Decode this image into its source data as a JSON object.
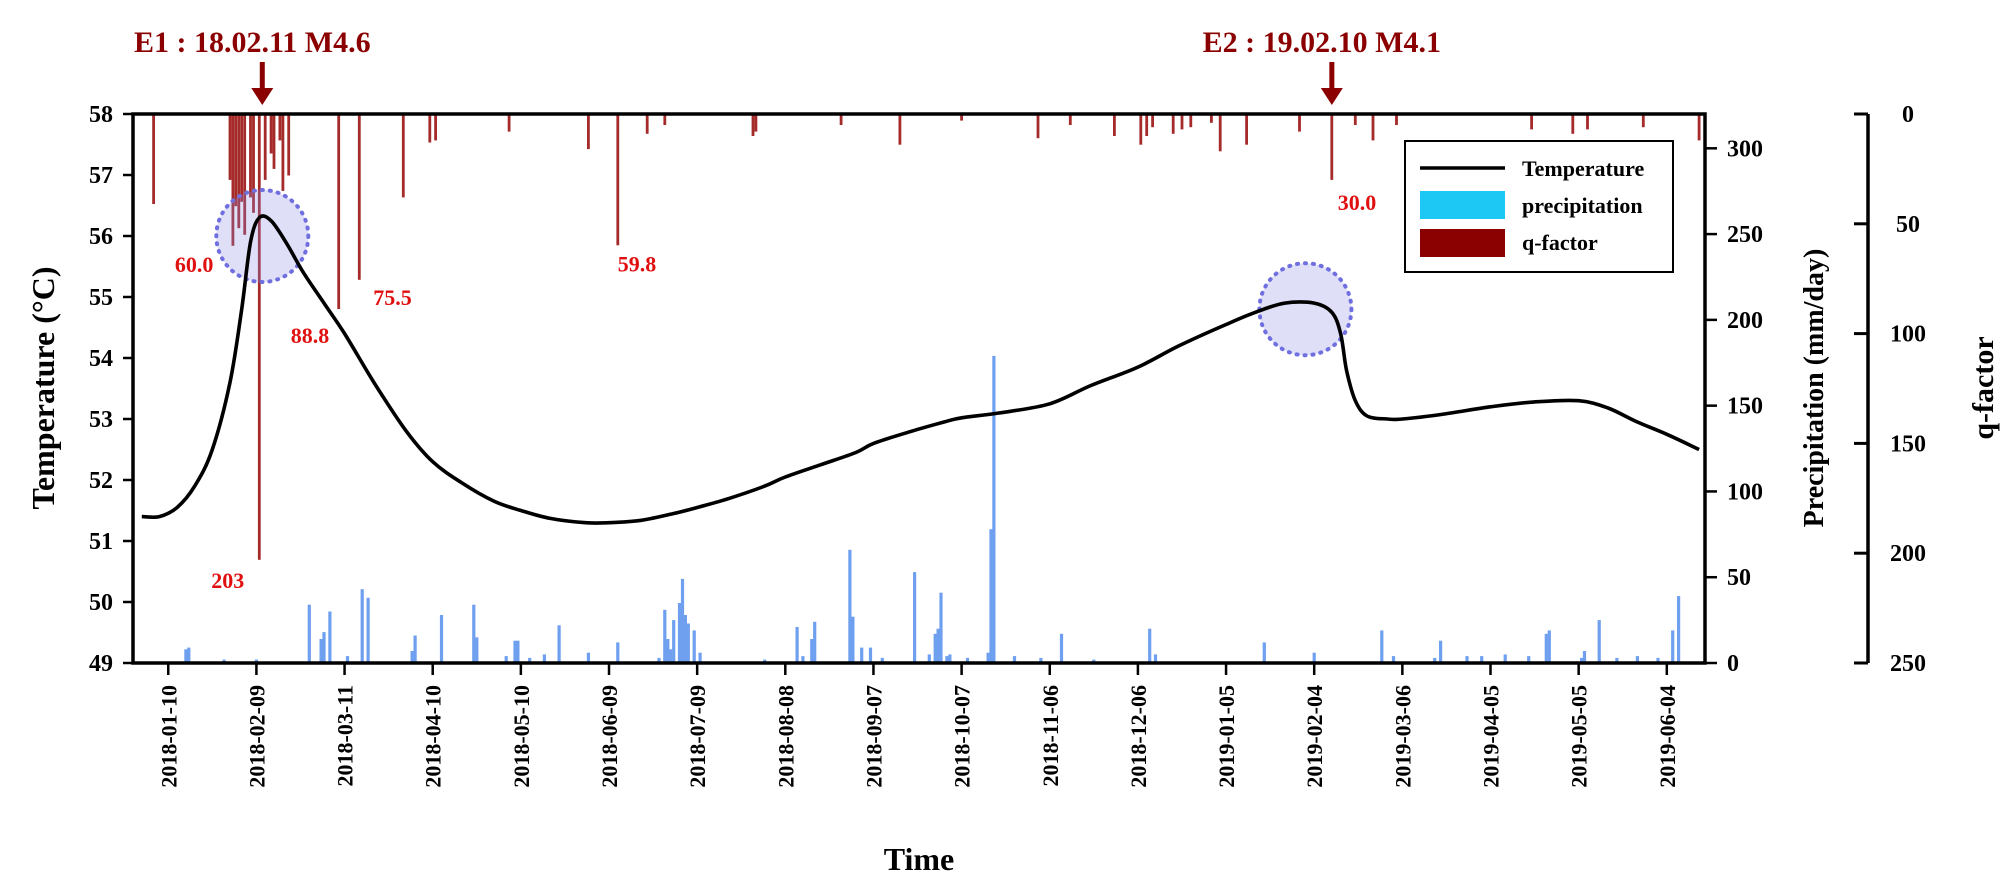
{
  "chart_data": {
    "type": "line",
    "xlabel": "Time",
    "ylabel_left": "Temperature (°C)",
    "ylabel_right_1": "Precipitation (mm/day)",
    "ylabel_right_2": "q-factor",
    "x_range": [
      "2017-12-29",
      "2019-06-17"
    ],
    "x_ticks": [
      "2018-01-10",
      "2018-02-09",
      "2018-03-11",
      "2018-04-10",
      "2018-05-10",
      "2018-06-09",
      "2018-07-09",
      "2018-08-08",
      "2018-09-07",
      "2018-10-07",
      "2018-11-06",
      "2018-12-06",
      "2019-01-05",
      "2019-02-04",
      "2019-03-06",
      "2019-04-05",
      "2019-05-05",
      "2019-06-04"
    ],
    "y_left": {
      "min": 49,
      "max": 58,
      "ticks": [
        49,
        50,
        51,
        52,
        53,
        54,
        55,
        56,
        57,
        58
      ]
    },
    "y_precip": {
      "min": 0,
      "max": 320,
      "ticks": [
        0,
        50,
        100,
        150,
        200,
        250,
        300
      ]
    },
    "y_qfactor": {
      "min": 0,
      "max": 250,
      "inverted": true,
      "ticks": [
        0,
        50,
        100,
        150,
        200,
        250
      ]
    },
    "legend": {
      "placement": "top-right",
      "items": [
        {
          "label": "Temperature",
          "color": "#000000",
          "kind": "line"
        },
        {
          "label": "precipitation",
          "color": "#1ec8f5",
          "kind": "box"
        },
        {
          "label": "q-factor",
          "color": "#8b0000",
          "kind": "box"
        }
      ]
    },
    "series": [
      {
        "name": "Temperature",
        "color": "#000000",
        "points": [
          [
            "2018-01-01",
            51.4
          ],
          [
            "2018-01-07",
            51.4
          ],
          [
            "2018-01-13",
            51.55
          ],
          [
            "2018-01-19",
            51.9
          ],
          [
            "2018-01-25",
            52.5
          ],
          [
            "2018-01-31",
            53.6
          ],
          [
            "2018-02-04",
            54.8
          ],
          [
            "2018-02-07",
            55.9
          ],
          [
            "2018-02-10",
            56.3
          ],
          [
            "2018-02-14",
            56.25
          ],
          [
            "2018-02-19",
            55.9
          ],
          [
            "2018-02-25",
            55.4
          ],
          [
            "2018-03-04",
            54.9
          ],
          [
            "2018-03-11",
            54.4
          ],
          [
            "2018-03-21",
            53.6
          ],
          [
            "2018-04-01",
            52.8
          ],
          [
            "2018-04-10",
            52.3
          ],
          [
            "2018-04-20",
            51.95
          ],
          [
            "2018-05-01",
            51.65
          ],
          [
            "2018-05-10",
            51.5
          ],
          [
            "2018-05-20",
            51.37
          ],
          [
            "2018-06-01",
            51.3
          ],
          [
            "2018-06-09",
            51.3
          ],
          [
            "2018-06-20",
            51.34
          ],
          [
            "2018-07-01",
            51.45
          ],
          [
            "2018-07-09",
            51.55
          ],
          [
            "2018-07-20",
            51.7
          ],
          [
            "2018-08-01",
            51.9
          ],
          [
            "2018-08-08",
            52.05
          ],
          [
            "2018-08-20",
            52.25
          ],
          [
            "2018-09-01",
            52.45
          ],
          [
            "2018-09-07",
            52.6
          ],
          [
            "2018-09-20",
            52.8
          ],
          [
            "2018-10-01",
            52.95
          ],
          [
            "2018-10-07",
            53.02
          ],
          [
            "2018-10-20",
            53.1
          ],
          [
            "2018-11-06",
            53.25
          ],
          [
            "2018-11-20",
            53.55
          ],
          [
            "2018-12-06",
            53.85
          ],
          [
            "2018-12-20",
            54.2
          ],
          [
            "2019-01-05",
            54.55
          ],
          [
            "2019-01-15",
            54.75
          ],
          [
            "2019-01-25",
            54.9
          ],
          [
            "2019-02-04",
            54.9
          ],
          [
            "2019-02-10",
            54.75
          ],
          [
            "2019-02-13",
            54.4
          ],
          [
            "2019-02-15",
            53.8
          ],
          [
            "2019-02-18",
            53.3
          ],
          [
            "2019-02-22",
            53.05
          ],
          [
            "2019-03-01",
            53.0
          ],
          [
            "2019-03-06",
            53.0
          ],
          [
            "2019-03-20",
            53.08
          ],
          [
            "2019-04-05",
            53.2
          ],
          [
            "2019-04-20",
            53.28
          ],
          [
            "2019-05-05",
            53.3
          ],
          [
            "2019-05-15",
            53.18
          ],
          [
            "2019-05-25",
            52.95
          ],
          [
            "2019-06-04",
            52.75
          ],
          [
            "2019-06-15",
            52.5
          ]
        ]
      },
      {
        "name": "precipitation",
        "color": "#6ea0ef",
        "points": [
          [
            "2018-01-16",
            8
          ],
          [
            "2018-01-17",
            9
          ],
          [
            "2018-01-29",
            2
          ],
          [
            "2018-02-09",
            2
          ],
          [
            "2018-02-27",
            34
          ],
          [
            "2018-03-03",
            14
          ],
          [
            "2018-03-04",
            18
          ],
          [
            "2018-03-06",
            30
          ],
          [
            "2018-03-12",
            4
          ],
          [
            "2018-03-17",
            43
          ],
          [
            "2018-03-19",
            38
          ],
          [
            "2018-04-03",
            7
          ],
          [
            "2018-04-04",
            16
          ],
          [
            "2018-04-13",
            28
          ],
          [
            "2018-04-24",
            34
          ],
          [
            "2018-04-25",
            15
          ],
          [
            "2018-05-05",
            4
          ],
          [
            "2018-05-08",
            13
          ],
          [
            "2018-05-09",
            13
          ],
          [
            "2018-05-13",
            3
          ],
          [
            "2018-05-18",
            5
          ],
          [
            "2018-05-23",
            22
          ],
          [
            "2018-06-02",
            6
          ],
          [
            "2018-06-12",
            12
          ],
          [
            "2018-06-26",
            3
          ],
          [
            "2018-06-28",
            31
          ],
          [
            "2018-06-29",
            14
          ],
          [
            "2018-06-30",
            8
          ],
          [
            "2018-07-01",
            25
          ],
          [
            "2018-07-03",
            35
          ],
          [
            "2018-07-04",
            49
          ],
          [
            "2018-07-05",
            28
          ],
          [
            "2018-07-06",
            23
          ],
          [
            "2018-07-08",
            19
          ],
          [
            "2018-07-10",
            6
          ],
          [
            "2018-08-01",
            2
          ],
          [
            "2018-08-12",
            21
          ],
          [
            "2018-08-14",
            4
          ],
          [
            "2018-08-17",
            14
          ],
          [
            "2018-08-18",
            24
          ],
          [
            "2018-08-30",
            66
          ],
          [
            "2018-08-31",
            27
          ],
          [
            "2018-09-03",
            9
          ],
          [
            "2018-09-06",
            9
          ],
          [
            "2018-09-10",
            3
          ],
          [
            "2018-09-21",
            53
          ],
          [
            "2018-09-26",
            5
          ],
          [
            "2018-09-28",
            17
          ],
          [
            "2018-09-29",
            20
          ],
          [
            "2018-09-30",
            41
          ],
          [
            "2018-10-02",
            4
          ],
          [
            "2018-10-03",
            5
          ],
          [
            "2018-10-09",
            3
          ],
          [
            "2018-10-16",
            6
          ],
          [
            "2018-10-17",
            78
          ],
          [
            "2018-10-18",
            179
          ],
          [
            "2018-10-25",
            4
          ],
          [
            "2018-11-03",
            3
          ],
          [
            "2018-11-10",
            17
          ],
          [
            "2018-11-21",
            2
          ],
          [
            "2018-12-10",
            20
          ],
          [
            "2018-12-12",
            5
          ],
          [
            "2019-01-18",
            12
          ],
          [
            "2019-02-04",
            6
          ],
          [
            "2019-02-27",
            19
          ],
          [
            "2019-03-03",
            4
          ],
          [
            "2019-03-17",
            3
          ],
          [
            "2019-03-19",
            13
          ],
          [
            "2019-03-28",
            4
          ],
          [
            "2019-04-02",
            4
          ],
          [
            "2019-04-10",
            5
          ],
          [
            "2019-04-18",
            4
          ],
          [
            "2019-04-24",
            17
          ],
          [
            "2019-04-25",
            19
          ],
          [
            "2019-05-06",
            3
          ],
          [
            "2019-05-07",
            7
          ],
          [
            "2019-05-12",
            25
          ],
          [
            "2019-05-18",
            3
          ],
          [
            "2019-05-25",
            4
          ],
          [
            "2019-06-01",
            3
          ],
          [
            "2019-06-06",
            19
          ],
          [
            "2019-06-08",
            39
          ]
        ]
      },
      {
        "name": "q-factor",
        "color": "#a52a2a",
        "points": [
          [
            "2018-01-05",
            41
          ],
          [
            "2018-01-31",
            30
          ],
          [
            "2018-02-01",
            60
          ],
          [
            "2018-02-02",
            42
          ],
          [
            "2018-02-03",
            52
          ],
          [
            "2018-02-04",
            40
          ],
          [
            "2018-02-05",
            55
          ],
          [
            "2018-02-07",
            38
          ],
          [
            "2018-02-08",
            45
          ],
          [
            "2018-02-10",
            203
          ],
          [
            "2018-02-12",
            30
          ],
          [
            "2018-02-14",
            18
          ],
          [
            "2018-02-15",
            25
          ],
          [
            "2018-02-17",
            12
          ],
          [
            "2018-02-18",
            35
          ],
          [
            "2018-02-20",
            28
          ],
          [
            "2018-03-09",
            88.8
          ],
          [
            "2018-03-16",
            75.5
          ],
          [
            "2018-03-31",
            38
          ],
          [
            "2018-04-09",
            13
          ],
          [
            "2018-04-11",
            12
          ],
          [
            "2018-05-06",
            8
          ],
          [
            "2018-06-02",
            16
          ],
          [
            "2018-06-12",
            59.8
          ],
          [
            "2018-06-22",
            9
          ],
          [
            "2018-06-28",
            5
          ],
          [
            "2018-07-28",
            10
          ],
          [
            "2018-07-29",
            8
          ],
          [
            "2018-08-27",
            5
          ],
          [
            "2018-09-16",
            14
          ],
          [
            "2018-10-07",
            3
          ],
          [
            "2018-11-02",
            11
          ],
          [
            "2018-11-13",
            5
          ],
          [
            "2018-11-28",
            10
          ],
          [
            "2018-12-07",
            14
          ],
          [
            "2018-12-09",
            10
          ],
          [
            "2018-12-11",
            6
          ],
          [
            "2018-12-18",
            9
          ],
          [
            "2018-12-21",
            7
          ],
          [
            "2018-12-24",
            6
          ],
          [
            "2018-12-31",
            4
          ],
          [
            "2019-01-03",
            17
          ],
          [
            "2019-01-12",
            14
          ],
          [
            "2019-01-30",
            8
          ],
          [
            "2019-02-10",
            30
          ],
          [
            "2019-02-18",
            5
          ],
          [
            "2019-02-24",
            12
          ],
          [
            "2019-03-04",
            5
          ],
          [
            "2019-04-19",
            7
          ],
          [
            "2019-05-03",
            9
          ],
          [
            "2019-05-08",
            7
          ],
          [
            "2019-05-27",
            6
          ],
          [
            "2019-06-15",
            12
          ]
        ]
      }
    ],
    "q_labels": [
      {
        "text": "60.0",
        "date": "2018-02-01",
        "q": 60
      },
      {
        "text": "203",
        "date": "2018-02-10",
        "q": 203
      },
      {
        "text": "88.8",
        "date": "2018-03-09",
        "q": 88.8
      },
      {
        "text": "75.5",
        "date": "2018-03-16",
        "q": 75.5
      },
      {
        "text": "59.8",
        "date": "2018-06-12",
        "q": 59.8
      },
      {
        "text": "30.0",
        "date": "2019-02-10",
        "q": 30
      }
    ],
    "events": [
      {
        "label": "E1 : 18.02.11 M4.6",
        "date": "2018-02-11"
      },
      {
        "label": "E2 : 19.02.10 M4.1",
        "date": "2019-02-10"
      }
    ],
    "highlights": [
      {
        "date": "2018-02-11",
        "temperature": 56.0
      },
      {
        "date": "2019-02-01",
        "temperature": 54.8
      }
    ]
  }
}
